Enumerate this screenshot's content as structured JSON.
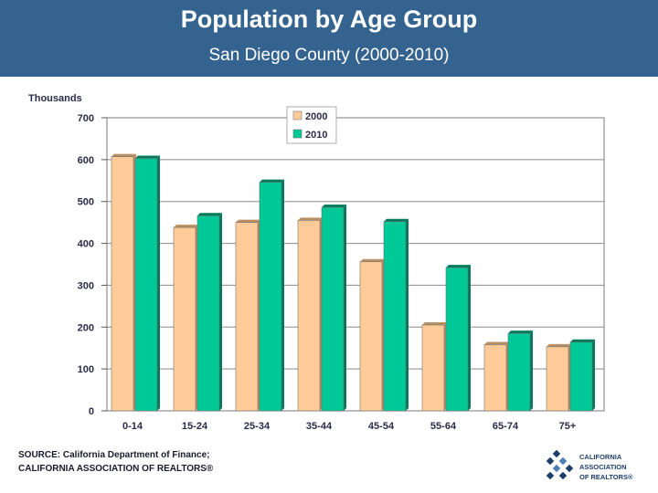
{
  "header": {
    "title": "Population by Age Group",
    "subtitle": "San Diego County (2000-2010)"
  },
  "footer": {
    "source_line1": "SOURCE: California Department of Finance;",
    "source_line2": "CALIFORNIA ASSOCIATION OF REALTORS®",
    "logo_line1": "CALIFORNIA",
    "logo_line2": "ASSOCIATION",
    "logo_line3": "OF REALTORS®"
  },
  "colors": {
    "header_bg": "#346390",
    "series_2000": "#FFCC99",
    "series_2010": "#00C896"
  },
  "chart_data": {
    "type": "bar",
    "ylabel": "Thousands",
    "xlabel": "",
    "ylim": [
      0,
      700
    ],
    "yticks": [
      0,
      100,
      200,
      300,
      400,
      500,
      600,
      700
    ],
    "categories": [
      "0-14",
      "15-24",
      "25-34",
      "35-44",
      "45-54",
      "55-64",
      "65-74",
      "75+"
    ],
    "series": [
      {
        "name": "2000",
        "color": "#FFCC99",
        "values": [
          607,
          438,
          450,
          455,
          356,
          205,
          158,
          153
        ]
      },
      {
        "name": "2010",
        "color": "#00C896",
        "values": [
          603,
          466,
          546,
          486,
          452,
          342,
          185,
          164
        ]
      }
    ],
    "legend_position": "top-right",
    "grid": "horizontal"
  }
}
